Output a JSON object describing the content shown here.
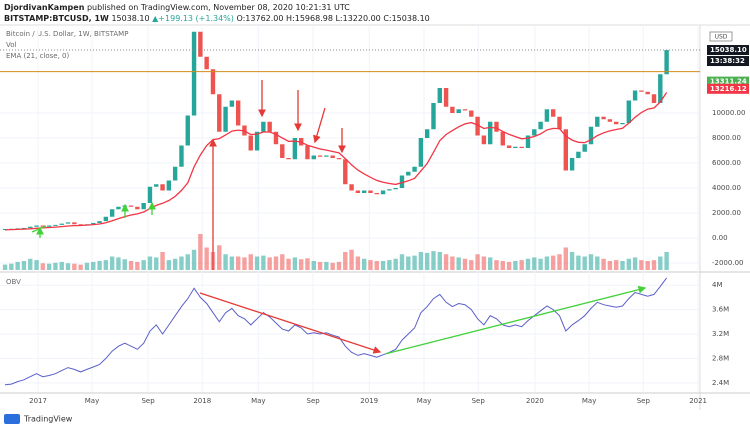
{
  "header": {
    "author": "DjordivanKampen",
    "published": "published on TradingView.com, November 08, 2020 10:21:31 UTC",
    "symbol": "BITSTAMP:BTCUSD, 1W",
    "last": "15038.10",
    "change": "▲+199.13 (+1.34%)",
    "ohlc": "O:13762.00 H:15968.98 L:13220.00 C:15038.10"
  },
  "footer": {
    "brand": "TradingView"
  },
  "chart_data": [
    {
      "type": "candlestick",
      "title": "Bitcoin / U.S. Dollar, 1W, BITSTAMP",
      "volume_label": "Vol",
      "ema_label": "EMA (21, close, 0)",
      "up_color": "#26a69a",
      "down_color": "#ef5350",
      "ylim": [
        -2720,
        17040
      ],
      "yticks": [
        {
          "value": -2000,
          "label": "-2000.00"
        },
        {
          "value": 0,
          "label": "0.00"
        },
        {
          "value": 2000,
          "label": "2000.00"
        },
        {
          "value": 4000,
          "label": "4000.00"
        },
        {
          "value": 6000,
          "label": "6000.00"
        },
        {
          "value": 8000,
          "label": "8000.00"
        },
        {
          "value": 10000,
          "label": "10000.00"
        }
      ],
      "xlim": [
        -0.8,
        110.3
      ],
      "xticks": [
        {
          "value": 5.24,
          "label": "2017"
        },
        {
          "value": 13.8,
          "label": "May"
        },
        {
          "value": 22.7,
          "label": "Sep"
        },
        {
          "value": 31.3,
          "label": "2018"
        },
        {
          "value": 40.2,
          "label": "May"
        },
        {
          "value": 48.9,
          "label": "Sep"
        },
        {
          "value": 57.8,
          "label": "2019"
        },
        {
          "value": 66.5,
          "label": "May"
        },
        {
          "value": 75.1,
          "label": "Sep"
        },
        {
          "value": 84.1,
          "label": "2020"
        },
        {
          "value": 92.7,
          "label": "May"
        },
        {
          "value": 101.3,
          "label": "Sep"
        },
        {
          "value": 110,
          "label": "2021"
        }
      ],
      "series": [
        {
          "name": "Close",
          "values": [
            720,
            740,
            770,
            800,
            900,
            1000,
            900,
            1000,
            1050,
            1150,
            1250,
            1100,
            1000,
            1100,
            1200,
            1350,
            1700,
            2300,
            2500,
            2600,
            2500,
            2300,
            2800,
            4100,
            4300,
            3800,
            4600,
            5700,
            7400,
            9800,
            16500,
            14500,
            13500,
            11500,
            8500,
            10500,
            11000,
            9000,
            8200,
            7000,
            8500,
            9300,
            8500,
            7500,
            6400,
            6300,
            8000,
            7400,
            6300,
            6600,
            6500,
            6600,
            6400,
            6300,
            4300,
            3800,
            3600,
            3800,
            3600,
            3500,
            3800,
            3900,
            4000,
            5000,
            5300,
            5700,
            8000,
            8700,
            10800,
            12000,
            10500,
            10000,
            10300,
            10200,
            9700,
            8200,
            7500,
            9300,
            8500,
            7400,
            7200,
            7300,
            7200,
            8200,
            8700,
            9300,
            10300,
            9700,
            8700,
            5400,
            6400,
            6900,
            7500,
            8900,
            9700,
            9500,
            9300,
            9100,
            9200,
            11000,
            11800,
            11700,
            11500,
            10800,
            13100,
            15038
          ]
        },
        {
          "name": "EMA",
          "color": "#f23645",
          "values": [
            650,
            670,
            690,
            710,
            740,
            780,
            810,
            840,
            870,
            910,
            960,
            990,
            1000,
            1030,
            1070,
            1120,
            1220,
            1380,
            1550,
            1710,
            1840,
            1930,
            2080,
            2350,
            2610,
            2780,
            3000,
            3330,
            3810,
            4420,
            5700,
            6640,
            7400,
            7870,
            7950,
            8240,
            8550,
            8630,
            8560,
            8280,
            8310,
            8480,
            8480,
            8300,
            8000,
            7740,
            7750,
            7670,
            7420,
            7270,
            7120,
            7030,
            6920,
            6810,
            6350,
            5850,
            5430,
            5130,
            4860,
            4610,
            4460,
            4360,
            4290,
            4430,
            4580,
            4780,
            5370,
            5960,
            6860,
            7790,
            8280,
            8590,
            8900,
            9130,
            9230,
            9040,
            8760,
            8850,
            8790,
            8530,
            8290,
            8110,
            7940,
            7990,
            8120,
            8330,
            8640,
            8770,
            8750,
            8150,
            7830,
            7660,
            7630,
            7860,
            8190,
            8420,
            8570,
            8680,
            8780,
            9190,
            9660,
            10040,
            10310,
            10400,
            10890,
            11640
          ]
        },
        {
          "name": "Vol",
          "values": [
            12,
            14,
            18,
            20,
            25,
            22,
            15,
            14,
            16,
            18,
            15,
            14,
            12,
            16,
            18,
            20,
            22,
            30,
            28,
            24,
            20,
            18,
            22,
            30,
            28,
            40,
            22,
            25,
            30,
            35,
            45,
            80,
            50,
            40,
            55,
            35,
            30,
            30,
            28,
            35,
            30,
            32,
            28,
            30,
            35,
            25,
            28,
            24,
            26,
            20,
            18,
            18,
            16,
            18,
            40,
            45,
            30,
            25,
            22,
            20,
            20,
            22,
            25,
            35,
            30,
            32,
            40,
            38,
            42,
            40,
            35,
            30,
            28,
            25,
            22,
            35,
            30,
            28,
            22,
            20,
            18,
            20,
            22,
            25,
            28,
            25,
            30,
            32,
            35,
            50,
            40,
            32,
            30,
            35,
            30,
            25,
            20,
            22,
            20,
            25,
            28,
            22,
            20,
            22,
            30,
            40
          ]
        }
      ],
      "price_tags": [
        {
          "value": 15038.1,
          "label": "15038.10",
          "color": "#131722"
        },
        {
          "value": 13311.24,
          "label": "13311.24",
          "color": "#4caf50"
        },
        {
          "value": 13216.12,
          "label": "13216.12",
          "color": "#f23645"
        }
      ],
      "countdown": "13:38:32",
      "currency": "USD",
      "level_color": "#d08c1a"
    },
    {
      "type": "line",
      "title": "OBV",
      "color": "#5b5fc7",
      "ylim": [
        2.25,
        4.2
      ],
      "yticks": [
        {
          "value": 2.4,
          "label": "2.4M"
        },
        {
          "value": 2.8,
          "label": "2.8M"
        },
        {
          "value": 3.2,
          "label": "3.2M"
        },
        {
          "value": 3.6,
          "label": "3.6M"
        },
        {
          "value": 4,
          "label": "4M"
        }
      ],
      "values": [
        2.37,
        2.38,
        2.42,
        2.45,
        2.5,
        2.55,
        2.5,
        2.52,
        2.55,
        2.6,
        2.65,
        2.62,
        2.58,
        2.62,
        2.66,
        2.7,
        2.8,
        2.92,
        3.0,
        3.05,
        3.0,
        2.95,
        3.05,
        3.25,
        3.35,
        3.2,
        3.35,
        3.5,
        3.65,
        3.78,
        3.95,
        3.8,
        3.7,
        3.55,
        3.4,
        3.55,
        3.62,
        3.5,
        3.45,
        3.35,
        3.45,
        3.55,
        3.48,
        3.38,
        3.28,
        3.25,
        3.35,
        3.3,
        3.2,
        3.22,
        3.2,
        3.22,
        3.18,
        3.15,
        3.0,
        2.9,
        2.85,
        2.88,
        2.85,
        2.82,
        2.86,
        2.9,
        2.95,
        3.1,
        3.2,
        3.3,
        3.55,
        3.65,
        3.78,
        3.85,
        3.72,
        3.65,
        3.7,
        3.68,
        3.6,
        3.45,
        3.35,
        3.5,
        3.45,
        3.35,
        3.32,
        3.35,
        3.32,
        3.42,
        3.5,
        3.58,
        3.66,
        3.6,
        3.5,
        3.25,
        3.35,
        3.42,
        3.5,
        3.62,
        3.72,
        3.68,
        3.66,
        3.64,
        3.66,
        3.78,
        3.88,
        3.85,
        3.82,
        3.85,
        3.98,
        4.12
      ]
    }
  ]
}
